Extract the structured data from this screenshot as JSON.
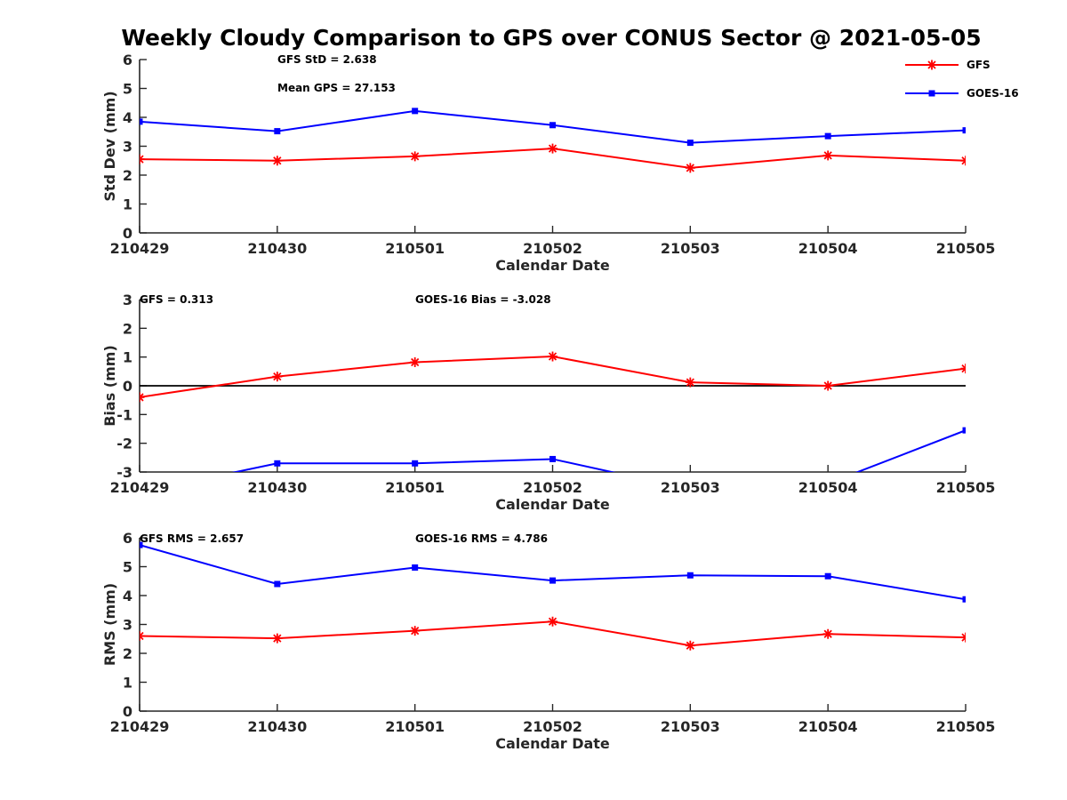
{
  "figure": {
    "title": "Weekly Cloudy Comparison to GPS over CONUS Sector @ 2021-05-05",
    "legend": {
      "placement": "top-right",
      "entries": [
        {
          "name": "GFS",
          "color": "#ff0000",
          "marker": "asterisk"
        },
        {
          "name": "GOES-16",
          "color": "#0000ff",
          "marker": "square"
        }
      ]
    }
  },
  "chart_data": [
    {
      "type": "line",
      "xlabel": "Calendar Date",
      "ylabel": "Std Dev (mm)",
      "categories": [
        "210429",
        "210430",
        "210501",
        "210502",
        "210503",
        "210504",
        "210505"
      ],
      "ylim": [
        0,
        6
      ],
      "yticks": [
        "0",
        "1",
        "2",
        "3",
        "4",
        "5",
        "6"
      ],
      "annotations": [
        "GFS StD = 2.638",
        "Mean GPS = 27.153"
      ],
      "series": [
        {
          "name": "GFS",
          "color": "#ff0000",
          "values": [
            2.55,
            2.5,
            2.65,
            2.92,
            2.25,
            2.68,
            2.5
          ]
        },
        {
          "name": "GOES-16",
          "color": "#0000ff",
          "values": [
            3.85,
            3.52,
            4.22,
            3.73,
            3.12,
            3.35,
            3.55
          ]
        }
      ]
    },
    {
      "type": "line",
      "xlabel": "Calendar Date",
      "ylabel": "Bias (mm)",
      "categories": [
        "210429",
        "210430",
        "210501",
        "210502",
        "210503",
        "210504",
        "210505"
      ],
      "ylim": [
        -3,
        3
      ],
      "yticks": [
        "-3",
        "-2",
        "-1",
        "0",
        "1",
        "2",
        "3"
      ],
      "zero_line": true,
      "annotations": [
        "GFS = 0.313",
        "GOES-16 Bias  = -3.028"
      ],
      "series": [
        {
          "name": "GFS",
          "color": "#ff0000",
          "values": [
            -0.4,
            0.32,
            0.82,
            1.02,
            0.12,
            0.0,
            0.6
          ]
        },
        {
          "name": "GOES-16",
          "color": "#0000ff",
          "values": [
            -3.7,
            -2.7,
            -2.7,
            -2.55,
            -3.6,
            -3.4,
            -1.55
          ]
        }
      ]
    },
    {
      "type": "line",
      "xlabel": "Calendar Date",
      "ylabel": "RMS (mm)",
      "categories": [
        "210429",
        "210430",
        "210501",
        "210502",
        "210503",
        "210504",
        "210505"
      ],
      "ylim": [
        0,
        6
      ],
      "yticks": [
        "0",
        "1",
        "2",
        "3",
        "4",
        "5",
        "6"
      ],
      "annotations": [
        "GFS RMS = 2.657",
        "GOES-16 RMS = 4.786"
      ],
      "series": [
        {
          "name": "GFS",
          "color": "#ff0000",
          "values": [
            2.6,
            2.52,
            2.78,
            3.1,
            2.27,
            2.67,
            2.55
          ]
        },
        {
          "name": "GOES-16",
          "color": "#0000ff",
          "values": [
            5.75,
            4.4,
            4.97,
            4.52,
            4.7,
            4.67,
            3.87
          ]
        }
      ]
    }
  ]
}
